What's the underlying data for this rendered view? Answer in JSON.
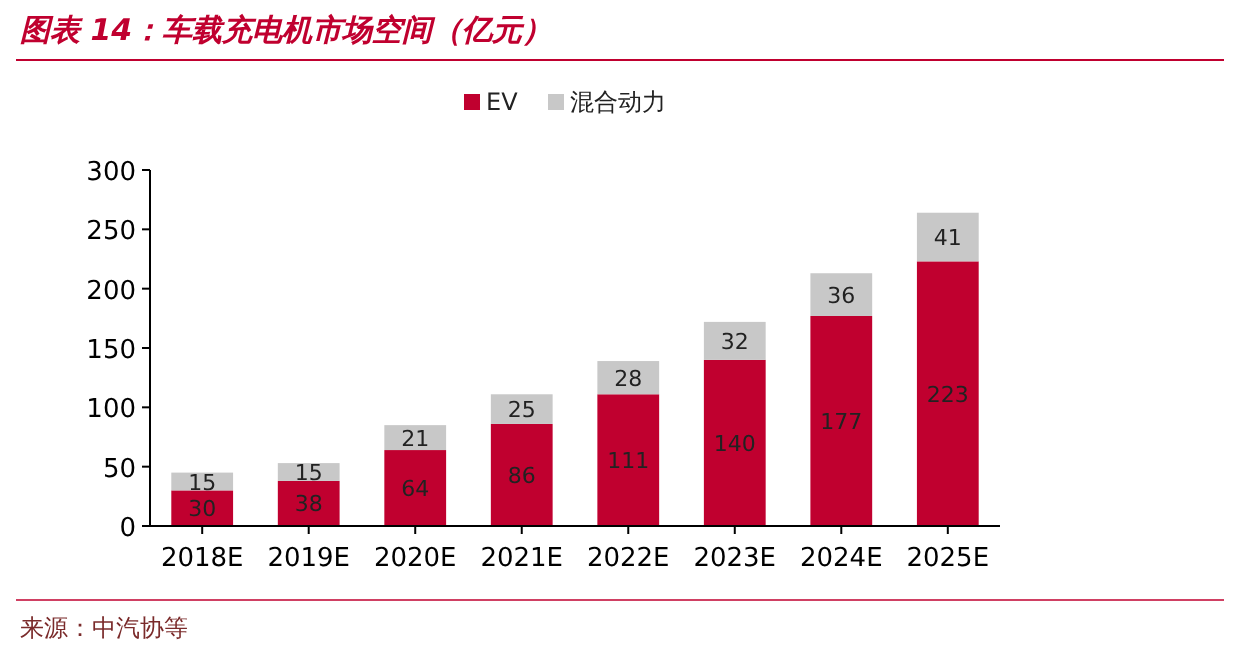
{
  "chart_data": {
    "type": "bar",
    "title": "图表 14：车载充电机市场空间（亿元）",
    "stacked": true,
    "categories": [
      "2018E",
      "2019E",
      "2020E",
      "2021E",
      "2022E",
      "2023E",
      "2024E",
      "2025E"
    ],
    "series": [
      {
        "name": "EV",
        "color": "#c0002f",
        "values": [
          30,
          38,
          64,
          86,
          111,
          140,
          177,
          223
        ]
      },
      {
        "name": "混合动力",
        "color": "#c8c8c8",
        "values": [
          15,
          15,
          21,
          25,
          28,
          32,
          36,
          41
        ]
      }
    ],
    "ylim": [
      0,
      300
    ],
    "yticks": [
      0,
      50,
      100,
      150,
      200,
      250,
      300
    ],
    "legend": "top",
    "data_labels": true,
    "annotations": [
      "来源：中汽协等"
    ]
  }
}
